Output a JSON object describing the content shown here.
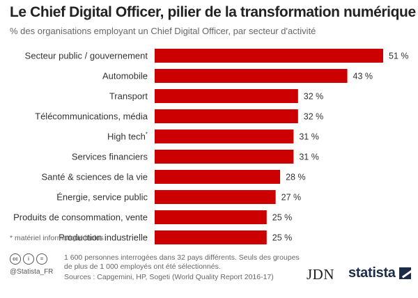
{
  "header": {
    "title": "Le Chief Digital Officer, pilier de la transformation numérique",
    "subtitle": "% des organisations employant un Chief Digital Officer, par secteur d'activité"
  },
  "chart_data": {
    "type": "bar",
    "orientation": "horizontal",
    "categories": [
      "Secteur public / gouvernement",
      "Automobile",
      "Transport",
      "Télécommunications, média",
      "High tech",
      "Services financiers",
      "Santé & sciences de la vie",
      "Énergie, service public",
      "Produits de consommation, vente",
      "Production industrielle"
    ],
    "values": [
      51,
      43,
      32,
      32,
      31,
      31,
      28,
      27,
      25,
      25
    ],
    "value_labels": [
      "51 %",
      "43 %",
      "32 %",
      "32 %",
      "31 %",
      "31 %",
      "28 %",
      "27 %",
      "25 %",
      "25 %"
    ],
    "category_markers": [
      "",
      "",
      "",
      "",
      "*",
      "",
      "",
      "",
      "",
      ""
    ],
    "unit": "%",
    "xlim": [
      0,
      51
    ],
    "grid": false,
    "bar_color": "#cc0000"
  },
  "footer": {
    "footnote": "* matériel informatique inclus",
    "cc_icons": [
      "cc",
      "i",
      "="
    ],
    "handle": "@Statista_FR",
    "note": "1 600 personnes interrogées dans 32 pays différents. Seuls des groupes de plus de 1 000 employés ont été sélectionnés.",
    "sources": "Sources : Capgemini, HP, Sogeti (World Quality Report 2016-17)",
    "logo_jdn": "JDN",
    "logo_statista": "statista"
  },
  "colors": {
    "bar": "#cc0000",
    "brand_dark": "#1d2b4a"
  }
}
